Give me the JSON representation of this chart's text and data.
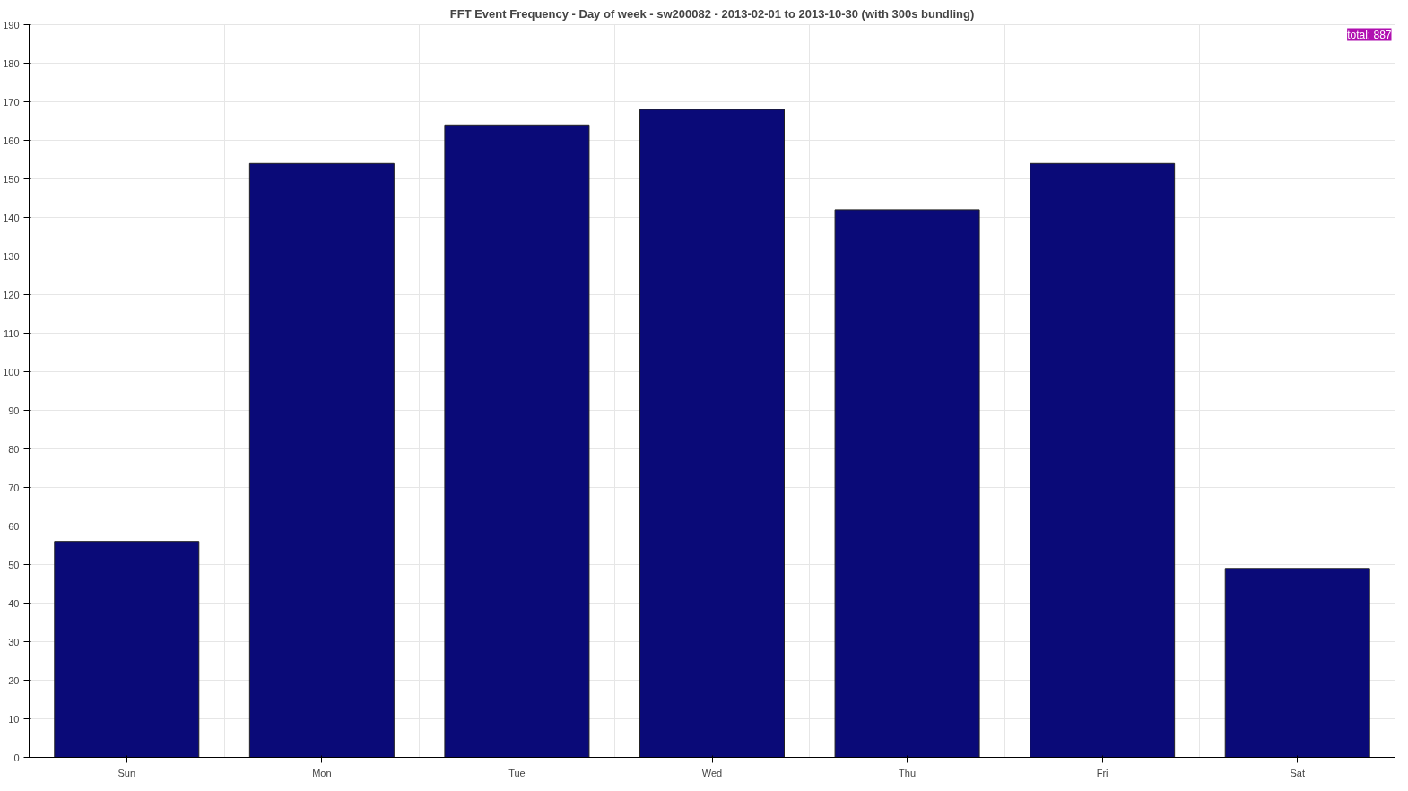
{
  "chart_data": {
    "type": "bar",
    "title": "FFT Event Frequency - Day of week - sw200082 - 2013-02-01 to 2013-10-30 (with 300s bundling)",
    "categories": [
      "Sun",
      "Mon",
      "Tue",
      "Wed",
      "Thu",
      "Fri",
      "Sat"
    ],
    "values": [
      56,
      154,
      164,
      168,
      142,
      154,
      49
    ],
    "color": "#0a0a78",
    "ylim": [
      0,
      190
    ],
    "yticks": [
      0,
      10,
      20,
      30,
      40,
      50,
      60,
      70,
      80,
      90,
      100,
      110,
      120,
      130,
      140,
      150,
      160,
      170,
      180,
      190
    ],
    "grid": true,
    "annotations": [
      "total: 887"
    ]
  }
}
